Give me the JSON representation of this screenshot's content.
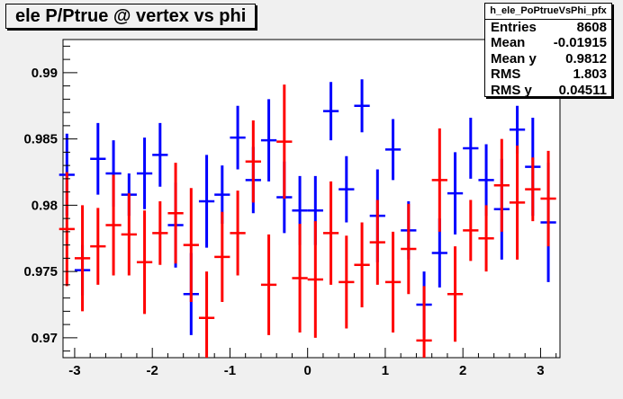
{
  "chart_data": {
    "type": "scatter",
    "title": "ele P/Ptrue @ vertex vs phi",
    "xlabel": "",
    "ylabel": "",
    "xlim": [
      -3.15,
      3.25
    ],
    "ylim": [
      0.9685,
      0.9925
    ],
    "x_ticks": [
      -3,
      -2,
      -1,
      0,
      1,
      2,
      3
    ],
    "y_ticks": [
      0.97,
      0.975,
      0.98,
      0.985,
      0.99
    ],
    "x_tick_labels": [
      "-3",
      "-2",
      "-1",
      "0",
      "1",
      "2",
      "3"
    ],
    "y_tick_labels": [
      "0.97",
      "0.975",
      "0.98",
      "0.985",
      "0.99"
    ],
    "grid": false,
    "xerr": 0.1,
    "series": [
      {
        "color": "#0000ff",
        "x": [
          -3.1,
          -2.9,
          -2.7,
          -2.5,
          -2.3,
          -2.1,
          -1.9,
          -1.7,
          -1.5,
          -1.3,
          -1.1,
          -0.9,
          -0.7,
          -0.5,
          -0.3,
          -0.1,
          0.1,
          0.3,
          0.5,
          0.7,
          0.9,
          1.1,
          1.3,
          1.5,
          1.7,
          1.9,
          2.1,
          2.3,
          2.5,
          2.7,
          2.9,
          3.1
        ],
        "y": [
          0.9823,
          0.9751,
          0.9835,
          0.9824,
          0.9808,
          0.9824,
          0.9838,
          0.9785,
          0.9733,
          0.9803,
          0.9808,
          0.9851,
          0.9819,
          0.9849,
          0.9806,
          0.9796,
          0.9796,
          0.9871,
          0.9812,
          0.9875,
          0.9792,
          0.9842,
          0.9781,
          0.9725,
          0.9764,
          0.9809,
          0.9843,
          0.9819,
          0.9797,
          0.9857,
          0.9829,
          0.9787
        ],
        "err": [
          0.0031,
          0.0019,
          0.0027,
          0.0025,
          0.0016,
          0.0027,
          0.0024,
          0.0032,
          0.0031,
          0.0035,
          0.0022,
          0.0024,
          0.0025,
          0.0031,
          0.0027,
          0.0026,
          0.0026,
          0.0022,
          0.0025,
          0.002,
          0.0035,
          0.0023,
          0.0022,
          0.0025,
          0.0026,
          0.0031,
          0.0023,
          0.0027,
          0.0038,
          0.0018,
          0.0037,
          0.0045
        ]
      },
      {
        "color": "#ff0000",
        "x": [
          -3.1,
          -2.9,
          -2.7,
          -2.5,
          -2.3,
          -2.1,
          -1.9,
          -1.7,
          -1.5,
          -1.3,
          -1.1,
          -0.9,
          -0.7,
          -0.5,
          -0.3,
          -0.1,
          0.1,
          0.3,
          0.5,
          0.7,
          0.9,
          1.1,
          1.3,
          1.5,
          1.7,
          1.9,
          2.1,
          2.3,
          2.5,
          2.7,
          2.9,
          3.1
        ],
        "y": [
          0.9782,
          0.976,
          0.9769,
          0.9785,
          0.9778,
          0.9757,
          0.9779,
          0.9794,
          0.977,
          0.9715,
          0.9761,
          0.9779,
          0.9833,
          0.974,
          0.9848,
          0.9745,
          0.9744,
          0.9779,
          0.9742,
          0.9755,
          0.9772,
          0.9742,
          0.9767,
          0.9698,
          0.9819,
          0.9733,
          0.9781,
          0.9775,
          0.9815,
          0.9802,
          0.9812,
          0.9805
        ]
      }
    ]
  },
  "stats": {
    "name": "h_ele_PoPtrueVsPhi_pfx",
    "rows": [
      {
        "label": "Entries",
        "value": "8608"
      },
      {
        "label": "Mean",
        "value": "-0.01915"
      },
      {
        "label": "Mean y",
        "value": "0.9812"
      },
      {
        "label": "RMS",
        "value": "1.803"
      },
      {
        "label": "RMS y",
        "value": "0.04511"
      }
    ]
  }
}
